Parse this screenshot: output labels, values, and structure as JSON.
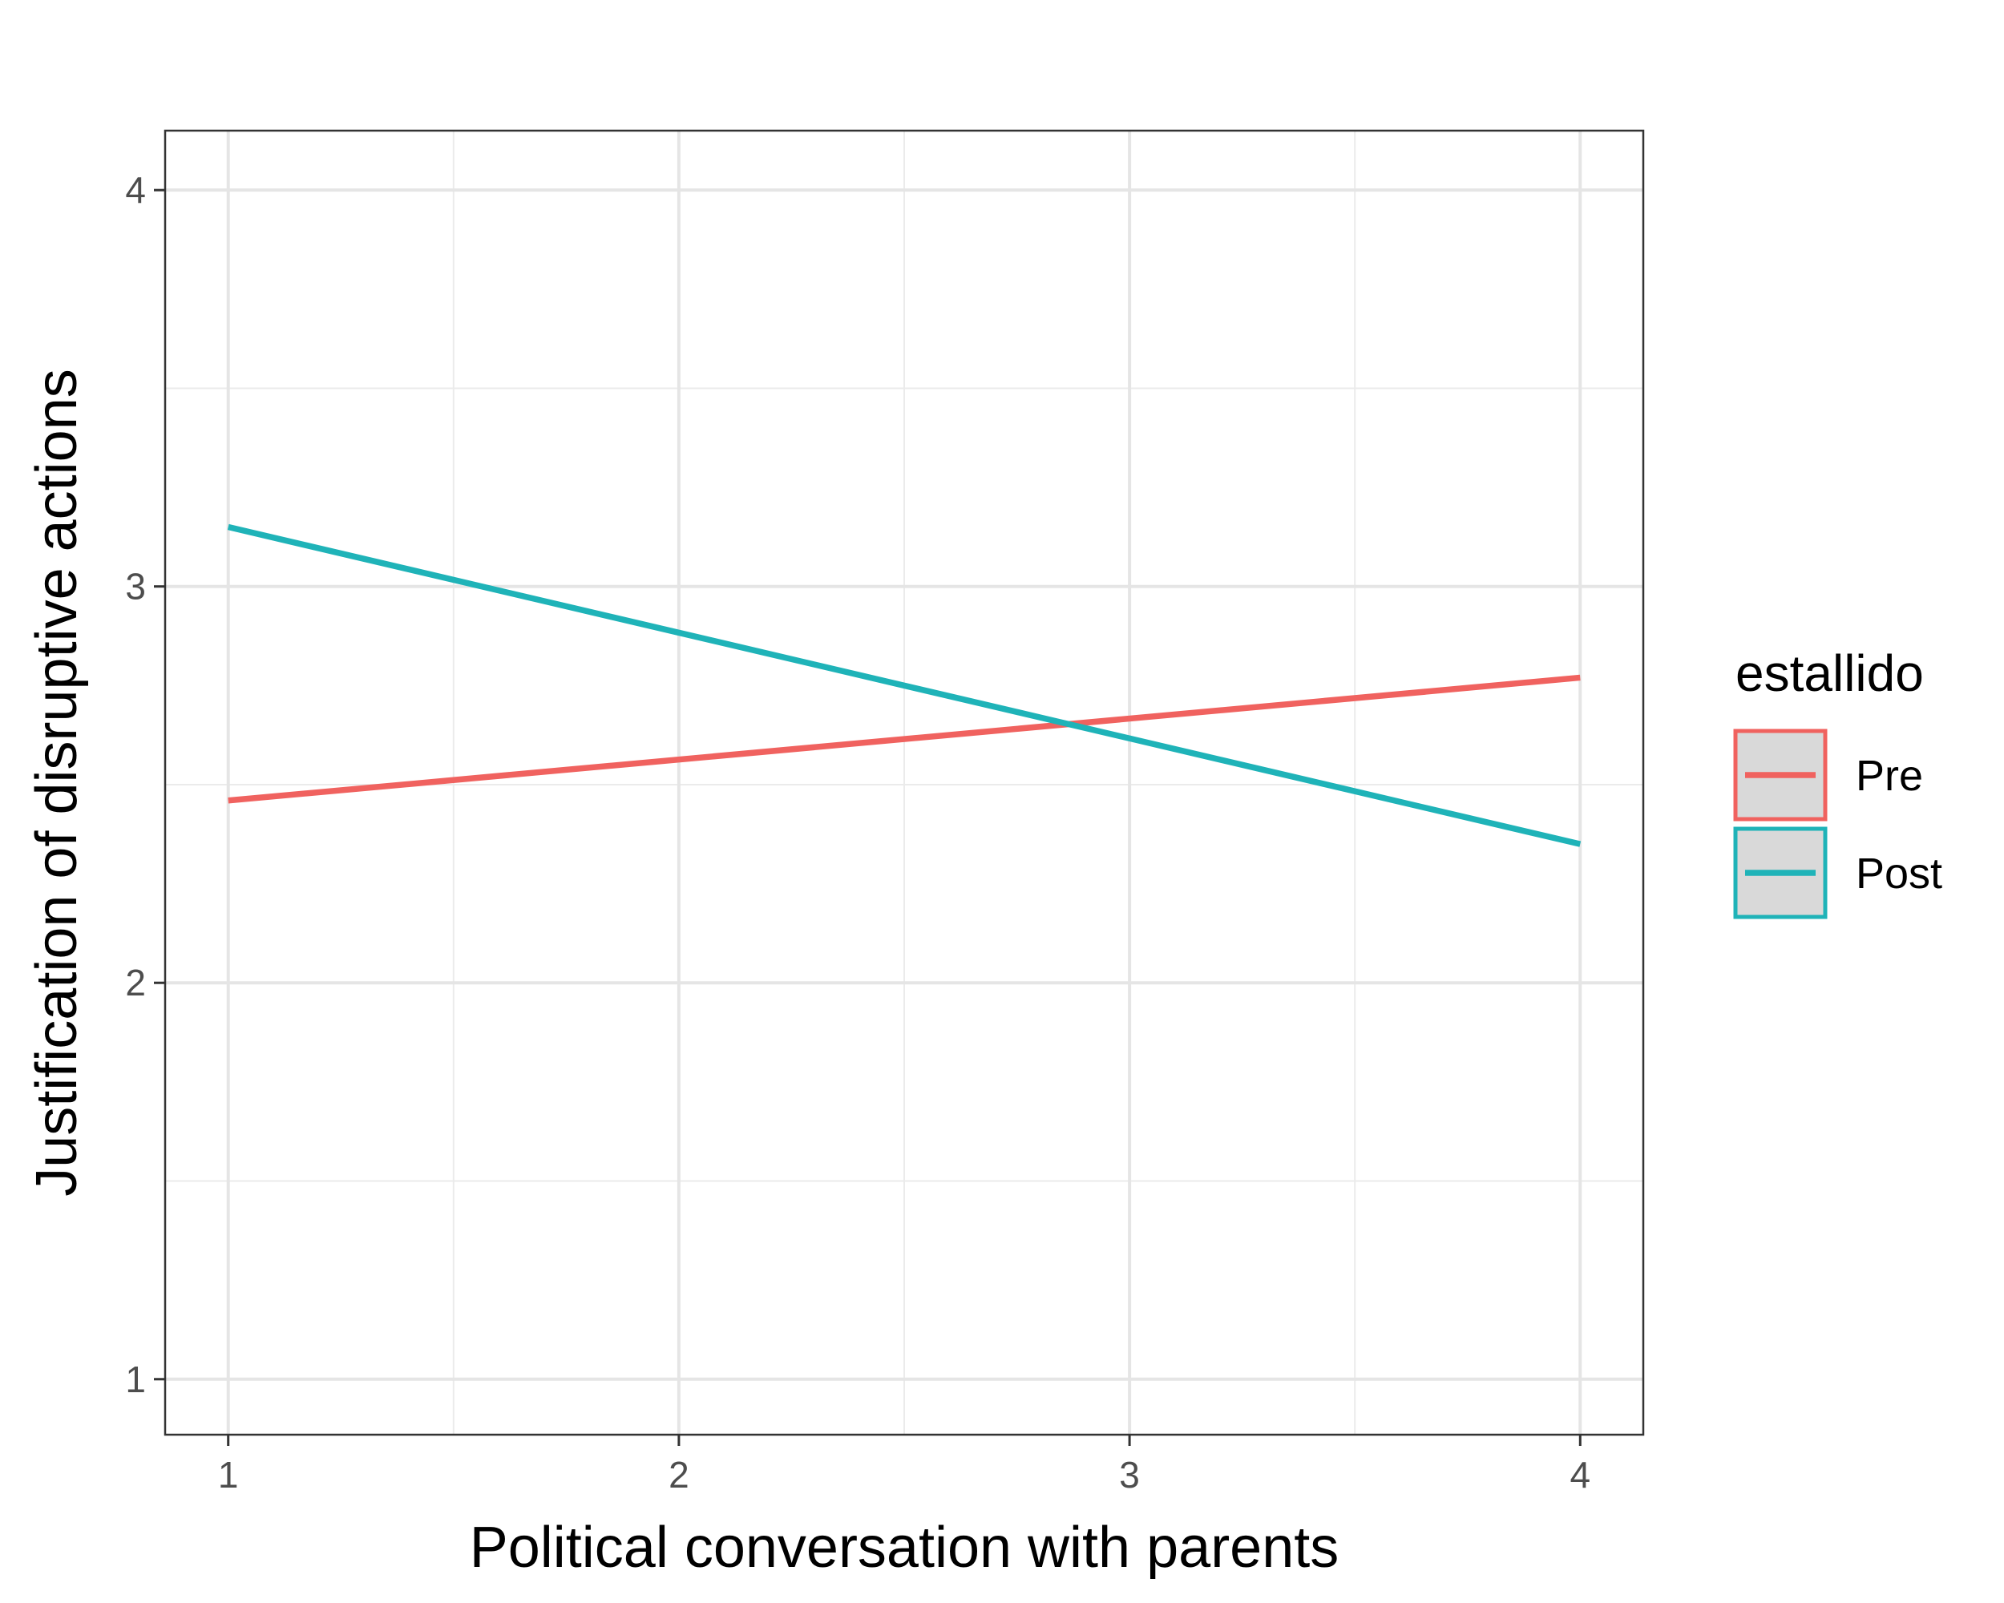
{
  "chart_data": {
    "type": "line",
    "title": "",
    "xlabel": "Political conversation with parents",
    "ylabel": "Justification of disruptive actions",
    "xlim": [
      0.86,
      4.14
    ],
    "ylim": [
      0.86,
      4.15
    ],
    "x_ticks": [
      1,
      2,
      3,
      4
    ],
    "y_ticks": [
      1,
      2,
      3,
      4
    ],
    "grid": true,
    "legend": {
      "title": "estallido",
      "position": "right"
    },
    "series": [
      {
        "name": "Pre",
        "color": "#F0625F",
        "x": [
          1,
          4
        ],
        "y": [
          2.46,
          2.77
        ]
      },
      {
        "name": "Post",
        "color": "#1FB3B8",
        "x": [
          1,
          4
        ],
        "y": [
          3.15,
          2.35
        ]
      }
    ]
  }
}
